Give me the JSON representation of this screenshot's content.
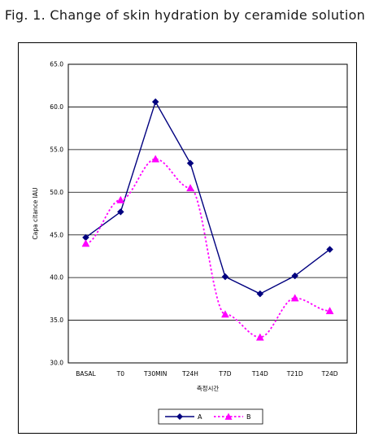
{
  "figure_title": "Fig. 1. Change of skin hydration by ceramide solution",
  "chart_data": {
    "type": "line",
    "title": "Fig. 1. Change of skin hydration by ceramide solution",
    "xlabel": "측정시간",
    "ylabel": "Capa citance IAU",
    "categories": [
      "BASAL",
      "T0",
      "T30MIN",
      "T24H",
      "T7D",
      "T14D",
      "T21D",
      "T24D"
    ],
    "ylim": [
      30.0,
      65.0
    ],
    "yticks": [
      "30.0",
      "35.0",
      "40.0",
      "45.0",
      "50.0",
      "55.0",
      "60.0",
      "65.0"
    ],
    "grid": true,
    "legend_position": "bottom",
    "series": [
      {
        "name": "A",
        "color": "#00007f",
        "marker": "diamond",
        "dash": "solid",
        "values": [
          44.7,
          47.7,
          60.6,
          53.4,
          40.1,
          38.1,
          40.2,
          43.3
        ]
      },
      {
        "name": "B",
        "color": "#ff00ff",
        "marker": "triangle",
        "dash": "dashed",
        "values": [
          44.0,
          49.1,
          53.9,
          50.5,
          35.7,
          33.0,
          37.6,
          36.1
        ]
      }
    ]
  }
}
